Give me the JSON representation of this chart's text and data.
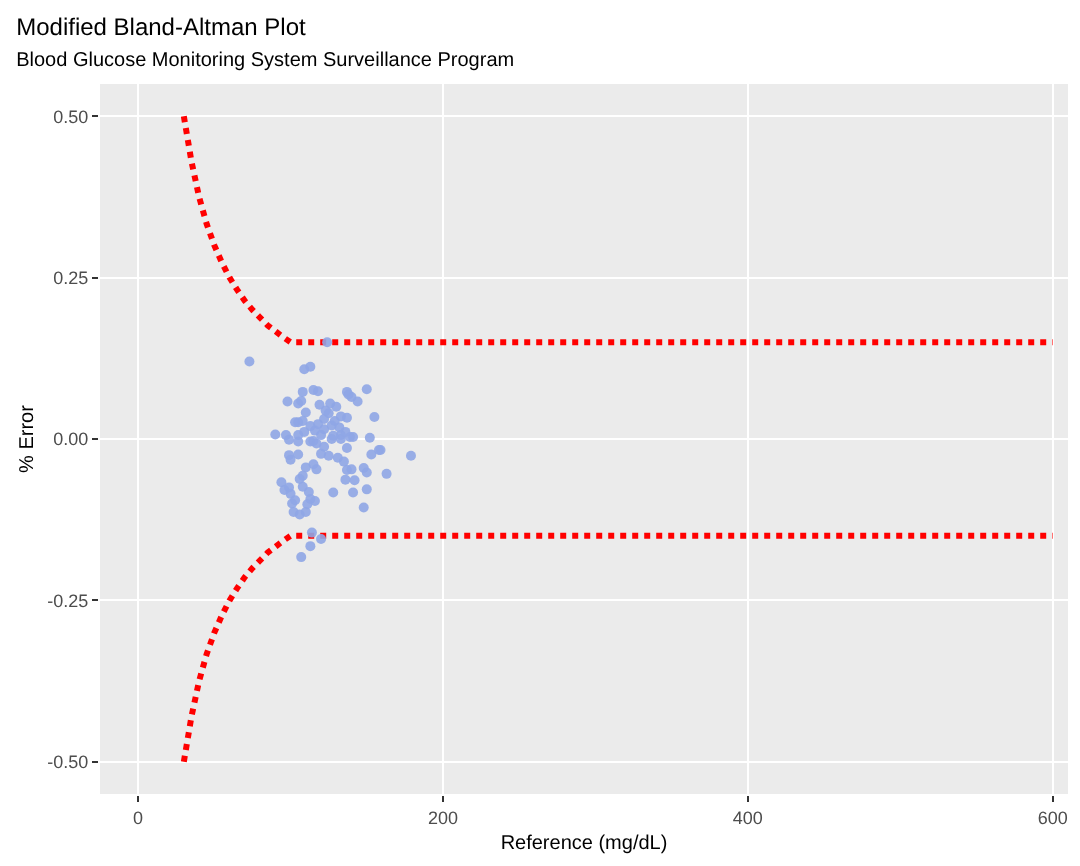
{
  "chart_data": {
    "type": "scatter",
    "title": "Modified Bland-Altman Plot",
    "subtitle": "Blood Glucose Monitoring System Surveillance Program",
    "xlabel": "Reference (mg/dL)",
    "ylabel": "% Error",
    "xlim": [
      -25,
      610
    ],
    "ylim": [
      -0.55,
      0.55
    ],
    "xticks": [
      0,
      200,
      400,
      600
    ],
    "yticks": [
      {
        "value": 0.5,
        "label": "0.50"
      },
      {
        "value": 0.25,
        "label": "0.25"
      },
      {
        "value": 0,
        "label": "0.00"
      },
      {
        "value": -0.25,
        "label": "-0.25"
      },
      {
        "value": -0.5,
        "label": "-0.50"
      }
    ],
    "grid": true,
    "series": [
      {
        "type": "line",
        "line_style": "dotted",
        "color": "#ff0000",
        "x": [
          30,
          35,
          40,
          45,
          50,
          55,
          60,
          65,
          70,
          75,
          80,
          85,
          90,
          95,
          100,
          600
        ],
        "values": [
          0.5,
          0.43,
          0.375,
          0.333,
          0.3,
          0.273,
          0.25,
          0.231,
          0.214,
          0.2,
          0.188,
          0.176,
          0.167,
          0.158,
          0.15,
          0.15
        ]
      },
      {
        "type": "line",
        "line_style": "dotted",
        "color": "#ff0000",
        "x": [
          30,
          35,
          40,
          45,
          50,
          55,
          60,
          65,
          70,
          75,
          80,
          85,
          90,
          95,
          100,
          600
        ],
        "values": [
          -0.5,
          -0.43,
          -0.375,
          -0.333,
          -0.3,
          -0.273,
          -0.25,
          -0.231,
          -0.214,
          -0.2,
          -0.188,
          -0.176,
          -0.167,
          -0.158,
          -0.15,
          -0.15
        ]
      },
      {
        "marker": "circle",
        "color": "#8fa6e6",
        "x": [
          73,
          124,
          109,
          113,
          108,
          115,
          118,
          98,
          105,
          107,
          110,
          105,
          103,
          108,
          119,
          126,
          130,
          125,
          122,
          118,
          116,
          109,
          122,
          120,
          90,
          97,
          105,
          113,
          115,
          127,
          133,
          137,
          140,
          138,
          150,
          144,
          137,
          155,
          133,
          139,
          141,
          152,
          136,
          122,
          125,
          131,
          120,
          99,
          105,
          100,
          115,
          110,
          108,
          106,
          117,
          137,
          153,
          158,
          159,
          179,
          137,
          140,
          148,
          150,
          163,
          136,
          142,
          94,
          96,
          99,
          100,
          108,
          112,
          113,
          116,
          103,
          111,
          128,
          141,
          150,
          148,
          101,
          102,
          106,
          110,
          114,
          113,
          107,
          120,
          99,
          105,
          129,
          133,
          123,
          127,
          132,
          117,
          113,
          135,
          128
        ],
        "values": [
          0.12,
          0.15,
          0.108,
          0.112,
          0.073,
          0.076,
          0.074,
          0.058,
          0.055,
          0.059,
          0.041,
          0.026,
          0.026,
          0.028,
          0.053,
          0.055,
          0.05,
          0.04,
          0.031,
          0.023,
          0.013,
          0.011,
          0.015,
          0.006,
          0.007,
          0.006,
          -0.004,
          -0.004,
          -0.003,
          0,
          0.006,
          0.073,
          0.065,
          0.069,
          0.077,
          0.058,
          0.033,
          0.034,
          0,
          0.003,
          0.003,
          0.002,
          0.011,
          -0.012,
          -0.026,
          -0.029,
          -0.023,
          -0.025,
          -0.024,
          -0.032,
          -0.039,
          -0.044,
          -0.057,
          -0.062,
          -0.047,
          -0.014,
          -0.024,
          -0.017,
          -0.017,
          -0.026,
          -0.048,
          -0.047,
          -0.045,
          -0.052,
          -0.054,
          -0.063,
          -0.064,
          -0.067,
          -0.079,
          -0.075,
          -0.085,
          -0.074,
          -0.082,
          -0.093,
          -0.096,
          -0.095,
          -0.101,
          -0.083,
          -0.083,
          -0.078,
          -0.106,
          -0.1,
          -0.113,
          -0.117,
          -0.113,
          -0.145,
          -0.166,
          -0.183,
          -0.155,
          -0.001,
          0.006,
          0.028,
          0.035,
          0.044,
          0.021,
          0.018,
          -0.007,
          0.02,
          -0.035,
          0.005
        ]
      }
    ]
  }
}
